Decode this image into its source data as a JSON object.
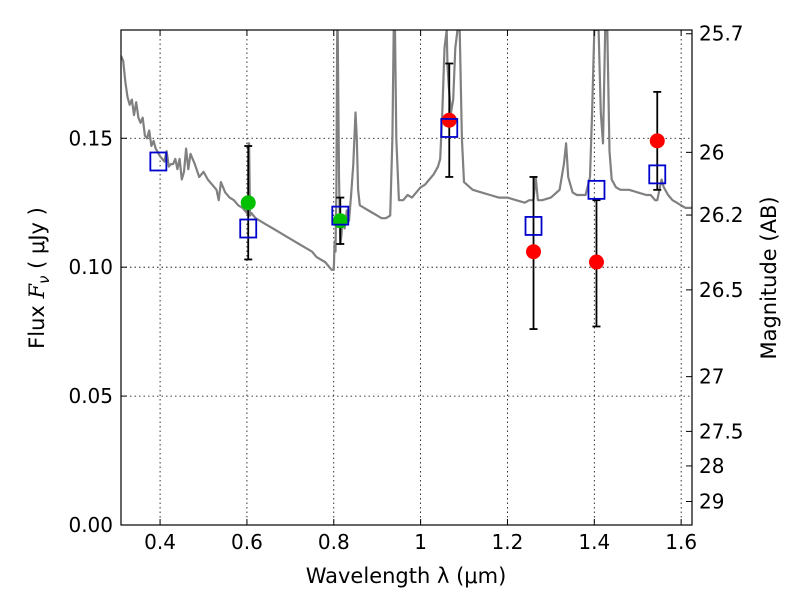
{
  "chart_data": {
    "type": "scatter",
    "xlabel": "Wavelength  λ (μm)",
    "ylabel": "Flux  F_ν  ( μJy )",
    "ylabel_parts": {
      "pre": "Flux  ",
      "sym": "F",
      "sub": "ν",
      "post": "  ( μJy )"
    },
    "y2label": "Magnitude (AB)",
    "xlim": [
      0.31,
      1.625
    ],
    "ylim": [
      0.0,
      0.192
    ],
    "x_ticks": [
      0.4,
      0.6,
      0.8,
      1.0,
      1.2,
      1.4,
      1.6
    ],
    "x_tick_labels": [
      "0.4",
      "0.6",
      "0.8",
      "1",
      "1.2",
      "1.4",
      "1.6"
    ],
    "y_ticks": [
      0.0,
      0.05,
      0.1,
      0.15
    ],
    "y_tick_labels": [
      "0.00",
      "0.05",
      "0.10",
      "0.15"
    ],
    "mag_ticks": [
      25.7,
      26,
      26.2,
      26.5,
      27,
      27.5,
      28,
      29
    ],
    "mag_tick_labels": [
      "25.7",
      "26",
      "26.2",
      "26.5",
      "27",
      "27.5",
      "28",
      "29"
    ],
    "grid": true,
    "colors": {
      "model": "#808080",
      "green": "#00c000",
      "red": "#ff0000",
      "box": "#0000cc",
      "errorbar": "#000000"
    },
    "series": [
      {
        "name": "model SED",
        "kind": "line",
        "points": [
          [
            0.31,
            0.182
          ],
          [
            0.315,
            0.18
          ],
          [
            0.32,
            0.172
          ],
          [
            0.325,
            0.166
          ],
          [
            0.33,
            0.163
          ],
          [
            0.335,
            0.165
          ],
          [
            0.34,
            0.159
          ],
          [
            0.345,
            0.164
          ],
          [
            0.35,
            0.158
          ],
          [
            0.355,
            0.156
          ],
          [
            0.36,
            0.158
          ],
          [
            0.365,
            0.151
          ],
          [
            0.37,
            0.15
          ],
          [
            0.375,
            0.153
          ],
          [
            0.38,
            0.147
          ],
          [
            0.385,
            0.149
          ],
          [
            0.39,
            0.146
          ],
          [
            0.4,
            0.143
          ],
          [
            0.41,
            0.141
          ],
          [
            0.415,
            0.145
          ],
          [
            0.42,
            0.139
          ],
          [
            0.425,
            0.14
          ],
          [
            0.43,
            0.14
          ],
          [
            0.435,
            0.142
          ],
          [
            0.44,
            0.138
          ],
          [
            0.445,
            0.142
          ],
          [
            0.45,
            0.134
          ],
          [
            0.455,
            0.137
          ],
          [
            0.46,
            0.146
          ],
          [
            0.465,
            0.138
          ],
          [
            0.47,
            0.144
          ],
          [
            0.48,
            0.14
          ],
          [
            0.49,
            0.135
          ],
          [
            0.5,
            0.137
          ],
          [
            0.51,
            0.134
          ],
          [
            0.52,
            0.132
          ],
          [
            0.53,
            0.13
          ],
          [
            0.535,
            0.126
          ],
          [
            0.54,
            0.133
          ],
          [
            0.55,
            0.129
          ],
          [
            0.56,
            0.127
          ],
          [
            0.57,
            0.126
          ],
          [
            0.58,
            0.124
          ],
          [
            0.59,
            0.123
          ],
          [
            0.6,
            0.121
          ],
          [
            0.603,
            0.12
          ],
          [
            0.604,
            0.148
          ],
          [
            0.605,
            0.148
          ],
          [
            0.607,
            0.12
          ],
          [
            0.61,
            0.121
          ],
          [
            0.62,
            0.119
          ],
          [
            0.63,
            0.118
          ],
          [
            0.64,
            0.117
          ],
          [
            0.65,
            0.116
          ],
          [
            0.66,
            0.115
          ],
          [
            0.67,
            0.114
          ],
          [
            0.68,
            0.113
          ],
          [
            0.69,
            0.112
          ],
          [
            0.7,
            0.111
          ],
          [
            0.71,
            0.11
          ],
          [
            0.72,
            0.109
          ],
          [
            0.73,
            0.108
          ],
          [
            0.74,
            0.107
          ],
          [
            0.75,
            0.106
          ],
          [
            0.76,
            0.104
          ],
          [
            0.77,
            0.103
          ],
          [
            0.78,
            0.102
          ],
          [
            0.79,
            0.1
          ],
          [
            0.795,
            0.099
          ],
          [
            0.8,
            0.099
          ],
          [
            0.802,
            0.11
          ],
          [
            0.804,
            0.106
          ],
          [
            0.806,
            0.13
          ],
          [
            0.808,
            0.192
          ],
          [
            0.809,
            0.192
          ],
          [
            0.812,
            0.135
          ],
          [
            0.815,
            0.109
          ],
          [
            0.818,
            0.113
          ],
          [
            0.82,
            0.12
          ],
          [
            0.825,
            0.115
          ],
          [
            0.83,
            0.122
          ],
          [
            0.835,
            0.118
          ],
          [
            0.84,
            0.128
          ],
          [
            0.845,
            0.14
          ],
          [
            0.85,
            0.16
          ],
          [
            0.853,
            0.15
          ],
          [
            0.856,
            0.13
          ],
          [
            0.86,
            0.124
          ],
          [
            0.87,
            0.123
          ],
          [
            0.88,
            0.122
          ],
          [
            0.89,
            0.121
          ],
          [
            0.9,
            0.12
          ],
          [
            0.91,
            0.119
          ],
          [
            0.92,
            0.119
          ],
          [
            0.93,
            0.12
          ],
          [
            0.935,
            0.15
          ],
          [
            0.938,
            0.192
          ],
          [
            0.941,
            0.192
          ],
          [
            0.944,
            0.15
          ],
          [
            0.95,
            0.126
          ],
          [
            0.96,
            0.126
          ],
          [
            0.97,
            0.128
          ],
          [
            0.98,
            0.127
          ],
          [
            0.99,
            0.129
          ],
          [
            1.0,
            0.131
          ],
          [
            1.01,
            0.132
          ],
          [
            1.02,
            0.134
          ],
          [
            1.03,
            0.136
          ],
          [
            1.04,
            0.139
          ],
          [
            1.045,
            0.142
          ],
          [
            1.05,
            0.16
          ],
          [
            1.055,
            0.185
          ],
          [
            1.06,
            0.192
          ],
          [
            1.062,
            0.178
          ],
          [
            1.065,
            0.17
          ],
          [
            1.07,
            0.16
          ],
          [
            1.075,
            0.165
          ],
          [
            1.08,
            0.185
          ],
          [
            1.085,
            0.192
          ],
          [
            1.09,
            0.192
          ],
          [
            1.095,
            0.15
          ],
          [
            1.1,
            0.133
          ],
          [
            1.12,
            0.13
          ],
          [
            1.14,
            0.129
          ],
          [
            1.16,
            0.128
          ],
          [
            1.18,
            0.127
          ],
          [
            1.2,
            0.127
          ],
          [
            1.22,
            0.126
          ],
          [
            1.24,
            0.125
          ],
          [
            1.25,
            0.126
          ],
          [
            1.26,
            0.126
          ],
          [
            1.265,
            0.135
          ],
          [
            1.27,
            0.126
          ],
          [
            1.28,
            0.126
          ],
          [
            1.3,
            0.127
          ],
          [
            1.32,
            0.13
          ],
          [
            1.33,
            0.14
          ],
          [
            1.335,
            0.148
          ],
          [
            1.34,
            0.135
          ],
          [
            1.35,
            0.129
          ],
          [
            1.36,
            0.128
          ],
          [
            1.38,
            0.128
          ],
          [
            1.39,
            0.135
          ],
          [
            1.395,
            0.16
          ],
          [
            1.4,
            0.192
          ],
          [
            1.41,
            0.192
          ],
          [
            1.415,
            0.16
          ],
          [
            1.42,
            0.148
          ],
          [
            1.425,
            0.192
          ],
          [
            1.43,
            0.192
          ],
          [
            1.435,
            0.145
          ],
          [
            1.44,
            0.134
          ],
          [
            1.45,
            0.131
          ],
          [
            1.46,
            0.13
          ],
          [
            1.48,
            0.13
          ],
          [
            1.5,
            0.129
          ],
          [
            1.52,
            0.128
          ],
          [
            1.53,
            0.128
          ],
          [
            1.54,
            0.126
          ],
          [
            1.545,
            0.126
          ],
          [
            1.55,
            0.13
          ],
          [
            1.555,
            0.134
          ],
          [
            1.56,
            0.131
          ],
          [
            1.57,
            0.128
          ],
          [
            1.58,
            0.126
          ],
          [
            1.59,
            0.125
          ],
          [
            1.6,
            0.124
          ],
          [
            1.61,
            0.123
          ],
          [
            1.625,
            0.123
          ]
        ]
      },
      {
        "name": "green points",
        "kind": "circle",
        "color": "green",
        "points": [
          [
            0.603,
            0.125
          ],
          [
            0.815,
            0.118
          ]
        ]
      },
      {
        "name": "red points",
        "kind": "circle",
        "color": "red",
        "points": [
          [
            1.066,
            0.157
          ],
          [
            1.26,
            0.106
          ],
          [
            1.405,
            0.102
          ],
          [
            1.545,
            0.149
          ]
        ]
      },
      {
        "name": "model boxes",
        "kind": "square",
        "color": "box",
        "points": [
          [
            0.396,
            0.141
          ],
          [
            0.603,
            0.115
          ],
          [
            0.815,
            0.12
          ],
          [
            1.066,
            0.154
          ],
          [
            1.26,
            0.116
          ],
          [
            1.405,
            0.13
          ],
          [
            1.545,
            0.136
          ]
        ]
      }
    ],
    "errorbars": [
      {
        "x": 0.603,
        "low": 0.103,
        "high": 0.147
      },
      {
        "x": 0.815,
        "low": 0.109,
        "high": 0.127
      },
      {
        "x": 1.066,
        "low": 0.135,
        "high": 0.179
      },
      {
        "x": 1.26,
        "low": 0.076,
        "high": 0.135
      },
      {
        "x": 1.405,
        "low": 0.077,
        "high": 0.126
      },
      {
        "x": 1.545,
        "low": 0.13,
        "high": 0.168
      }
    ]
  }
}
